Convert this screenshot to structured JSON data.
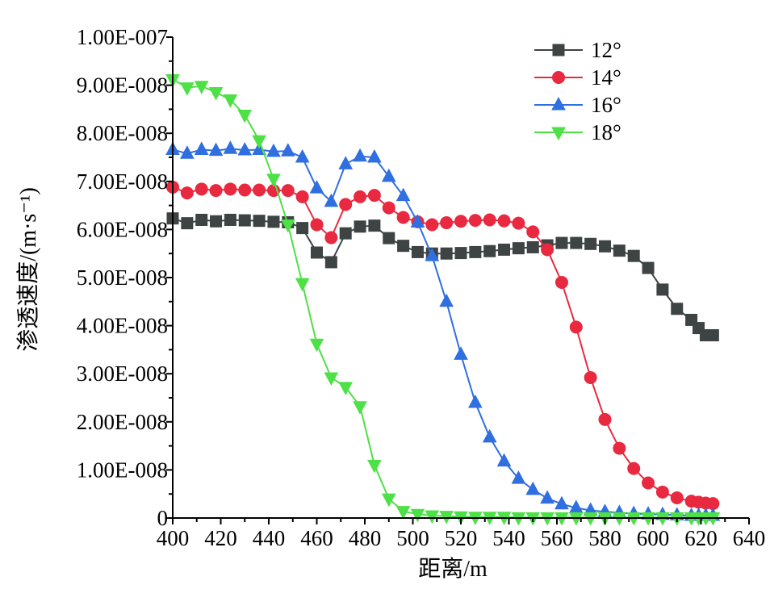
{
  "chart_data": {
    "type": "line",
    "title": "",
    "xlabel": "距离/m",
    "ylabel": "渗透速度/(m·s⁻¹)",
    "xlim": [
      400,
      640
    ],
    "ylim": [
      0,
      1e-07
    ],
    "xticks": [
      400,
      420,
      440,
      460,
      480,
      500,
      520,
      540,
      560,
      580,
      600,
      620,
      640
    ],
    "xtick_labels": [
      "400",
      "420",
      "440",
      "460",
      "480",
      "500",
      "520",
      "540",
      "560",
      "580",
      "600",
      "620",
      "640"
    ],
    "yticks": [
      0,
      1e-08,
      2e-08,
      3e-08,
      4e-08,
      5e-08,
      6e-08,
      7e-08,
      8e-08,
      9e-08,
      1e-07
    ],
    "ytick_labels": [
      "0",
      "1.00E-008",
      "2.00E-008",
      "3.00E-008",
      "4.00E-008",
      "5.00E-008",
      "6.00E-008",
      "7.00E-008",
      "8.00E-008",
      "9.00E-008",
      "1.00E-007"
    ],
    "grid": false,
    "legend_position": "top-right",
    "series": [
      {
        "name": "12°",
        "color": "#3d4443",
        "marker": "square",
        "x": [
          400,
          406,
          412,
          418,
          424,
          430,
          436,
          442,
          448,
          454,
          460,
          466,
          472,
          478,
          484,
          490,
          496,
          502,
          508,
          514,
          520,
          526,
          532,
          538,
          544,
          550,
          556,
          562,
          568,
          574,
          580,
          586,
          592,
          598,
          604,
          610,
          616,
          619,
          622,
          625
        ],
        "y": [
          6.23e-08,
          6.13e-08,
          6.2e-08,
          6.17e-08,
          6.2e-08,
          6.19e-08,
          6.18e-08,
          6.16e-08,
          6.15e-08,
          6.03e-08,
          5.52e-08,
          5.32e-08,
          5.92e-08,
          6.06e-08,
          6.08e-08,
          5.82e-08,
          5.66e-08,
          5.53e-08,
          5.5e-08,
          5.5e-08,
          5.51e-08,
          5.53e-08,
          5.55e-08,
          5.58e-08,
          5.61e-08,
          5.63e-08,
          5.67e-08,
          5.72e-08,
          5.72e-08,
          5.7e-08,
          5.65e-08,
          5.56e-08,
          5.45e-08,
          5.2e-08,
          4.75e-08,
          4.35e-08,
          4.12e-08,
          3.95e-08,
          3.8e-08,
          3.8e-08
        ]
      },
      {
        "name": "14°",
        "color": "#e8293f",
        "marker": "circle",
        "x": [
          400,
          406,
          412,
          418,
          424,
          430,
          436,
          442,
          448,
          454,
          460,
          466,
          472,
          478,
          484,
          490,
          496,
          502,
          508,
          514,
          520,
          526,
          532,
          538,
          544,
          550,
          556,
          562,
          568,
          574,
          580,
          586,
          592,
          598,
          604,
          610,
          616,
          619,
          622,
          625
        ],
        "y": [
          6.88e-08,
          6.76e-08,
          6.84e-08,
          6.81e-08,
          6.84e-08,
          6.82e-08,
          6.82e-08,
          6.81e-08,
          6.81e-08,
          6.68e-08,
          6.1e-08,
          5.83e-08,
          6.52e-08,
          6.68e-08,
          6.71e-08,
          6.45e-08,
          6.25e-08,
          6.16e-08,
          6.1e-08,
          6.14e-08,
          6.17e-08,
          6.19e-08,
          6.2e-08,
          6.18e-08,
          6.13e-08,
          5.95e-08,
          5.58e-08,
          4.9e-08,
          3.97e-08,
          2.92e-08,
          2.05e-08,
          1.45e-08,
          1.03e-08,
          7.3e-09,
          5.4e-09,
          4.2e-09,
          3.5e-09,
          3.3e-09,
          3.1e-09,
          3e-09
        ]
      },
      {
        "name": "16°",
        "color": "#2f6fe0",
        "marker": "triangle-up",
        "x": [
          400,
          406,
          412,
          418,
          424,
          430,
          436,
          442,
          448,
          454,
          460,
          466,
          472,
          478,
          484,
          490,
          496,
          502,
          508,
          514,
          520,
          526,
          532,
          538,
          544,
          550,
          556,
          562,
          568,
          574,
          580,
          586,
          592,
          598,
          604,
          610,
          616,
          619,
          622,
          625
        ],
        "y": [
          7.66e-08,
          7.58e-08,
          7.66e-08,
          7.64e-08,
          7.68e-08,
          7.65e-08,
          7.66e-08,
          7.62e-08,
          7.63e-08,
          7.5e-08,
          6.86e-08,
          6.58e-08,
          7.36e-08,
          7.52e-08,
          7.5e-08,
          7.1e-08,
          6.7e-08,
          6.15e-08,
          5.45e-08,
          4.5e-08,
          3.4e-08,
          2.4e-08,
          1.68e-08,
          1.18e-08,
          8.2e-09,
          5.9e-09,
          4.1e-09,
          2.9e-09,
          2.1e-09,
          1.6e-09,
          1.3e-09,
          1.1e-09,
          9e-10,
          8e-10,
          7e-10,
          6e-10,
          5e-10,
          5e-10,
          5e-10,
          5e-10
        ]
      },
      {
        "name": "18°",
        "color": "#4ee047",
        "marker": "triangle-down",
        "x": [
          400,
          406,
          412,
          418,
          424,
          430,
          436,
          442,
          448,
          454,
          460,
          466,
          472,
          478,
          484,
          490,
          496,
          502,
          508,
          514,
          520,
          526,
          532,
          538,
          544,
          550,
          556,
          562,
          568,
          574,
          580,
          586,
          592,
          598,
          604,
          610,
          616,
          619,
          622,
          625
        ],
        "y": [
          9.12e-08,
          8.95e-08,
          8.98e-08,
          8.85e-08,
          8.7e-08,
          8.38e-08,
          7.85e-08,
          7.05e-08,
          6.1e-08,
          4.88e-08,
          3.62e-08,
          2.92e-08,
          2.72e-08,
          2.32e-08,
          1.1e-08,
          4e-09,
          1.4e-09,
          8e-10,
          5e-10,
          4e-10,
          3e-10,
          2e-10,
          2e-10,
          2e-10,
          1e-10,
          1e-10,
          1e-10,
          1e-10,
          1e-10,
          1e-10,
          1e-10,
          1e-10,
          1e-10,
          1e-10,
          1e-10,
          1e-10,
          1e-10,
          1e-10,
          1e-10,
          1e-10
        ]
      }
    ]
  }
}
